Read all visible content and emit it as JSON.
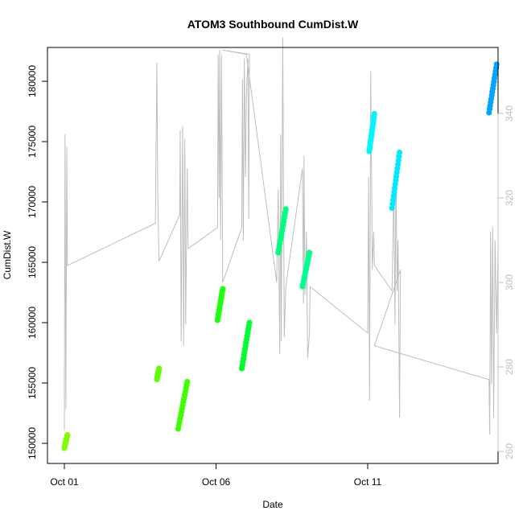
{
  "chart_data": {
    "type": "scatter",
    "title": "ATOM3 Southbound CumDist.W",
    "xlabel": "Date",
    "ylabel": "CumDist.W",
    "x_ticks": [
      "Oct 01",
      "Oct 06",
      "Oct 11"
    ],
    "x_range_days": [
      0,
      14.6
    ],
    "ylim": [
      149000,
      182500
    ],
    "y_ticks": [
      150000,
      155000,
      160000,
      165000,
      170000,
      175000,
      180000
    ],
    "y_right_ticks": [
      260,
      280,
      300,
      320,
      340
    ],
    "y_right_range": [
      258,
      355
    ],
    "gray_line_color": "#bebebe",
    "point_series": [
      {
        "color": "#7fff00",
        "points": [
          [
            0.0,
            149600
          ],
          [
            0.1,
            150700
          ]
        ]
      },
      {
        "color": "#5fff00",
        "points": [
          [
            3.05,
            155300
          ],
          [
            3.12,
            156200
          ]
        ]
      },
      {
        "color": "#3fff00",
        "points": [
          [
            3.75,
            151200
          ],
          [
            4.05,
            155100
          ]
        ]
      },
      {
        "color": "#1fff10",
        "points": [
          [
            5.05,
            160200
          ],
          [
            5.22,
            162800
          ]
        ]
      },
      {
        "color": "#00ff30",
        "points": [
          [
            5.85,
            156200
          ],
          [
            6.1,
            160000
          ]
        ]
      },
      {
        "color": "#00ff7f",
        "points": [
          [
            7.05,
            165800
          ],
          [
            7.3,
            169400
          ]
        ]
      },
      {
        "color": "#00ff90",
        "points": [
          [
            7.85,
            163000
          ],
          [
            8.08,
            165800
          ]
        ]
      },
      {
        "color": "#00f5ff",
        "points": [
          [
            10.05,
            174200
          ],
          [
            10.22,
            177300
          ]
        ]
      },
      {
        "color": "#00eaff",
        "points": [
          [
            10.8,
            169500
          ],
          [
            11.05,
            174100
          ]
        ]
      },
      {
        "color": "#00a5ff",
        "points": [
          [
            14.0,
            177400
          ],
          [
            14.25,
            181400
          ]
        ]
      }
    ],
    "gray_polyline_right_axis": [
      [
        0.0,
        265
      ],
      [
        0.02,
        335
      ],
      [
        0.05,
        270
      ],
      [
        0.08,
        332
      ],
      [
        0.1,
        304
      ],
      [
        3.0,
        314
      ],
      [
        3.05,
        352
      ],
      [
        3.08,
        321
      ],
      [
        3.12,
        305
      ],
      [
        3.8,
        316
      ],
      [
        3.82,
        336
      ],
      [
        3.85,
        286
      ],
      [
        3.9,
        337
      ],
      [
        3.93,
        285
      ],
      [
        3.97,
        334
      ],
      [
        4.0,
        290
      ],
      [
        4.05,
        327
      ],
      [
        4.08,
        308
      ],
      [
        5.05,
        313
      ],
      [
        5.07,
        354
      ],
      [
        5.1,
        320
      ],
      [
        5.12,
        355
      ],
      [
        5.15,
        310
      ],
      [
        5.18,
        354
      ],
      [
        5.22,
        300
      ],
      [
        5.85,
        313
      ],
      [
        5.87,
        348
      ],
      [
        5.9,
        310
      ],
      [
        5.93,
        353
      ],
      [
        5.97,
        325
      ],
      [
        6.0,
        344
      ],
      [
        6.05,
        353
      ],
      [
        6.08,
        315
      ],
      [
        6.1,
        354
      ],
      [
        5.22,
        355
      ],
      [
        6.0,
        354
      ],
      [
        7.0,
        300
      ],
      [
        7.05,
        322
      ],
      [
        7.1,
        283
      ],
      [
        7.13,
        335
      ],
      [
        7.15,
        286
      ],
      [
        7.2,
        358
      ],
      [
        7.25,
        287
      ],
      [
        7.3,
        299
      ],
      [
        7.85,
        327
      ],
      [
        7.88,
        295
      ],
      [
        7.9,
        330
      ],
      [
        7.93,
        297
      ],
      [
        7.98,
        312
      ],
      [
        8.02,
        282
      ],
      [
        8.08,
        288
      ],
      [
        8.1,
        299
      ],
      [
        10.0,
        288
      ],
      [
        10.03,
        325
      ],
      [
        10.06,
        272
      ],
      [
        10.1,
        350
      ],
      [
        10.15,
        303
      ],
      [
        10.2,
        312
      ],
      [
        10.22,
        304
      ],
      [
        10.8,
        298
      ],
      [
        10.83,
        308
      ],
      [
        10.86,
        324
      ],
      [
        10.9,
        290
      ],
      [
        10.93,
        326
      ],
      [
        10.97,
        298
      ],
      [
        11.0,
        310
      ],
      [
        11.05,
        268
      ],
      [
        11.08,
        303
      ],
      [
        10.22,
        285
      ],
      [
        14.0,
        277
      ],
      [
        14.02,
        264
      ],
      [
        14.05,
        312
      ],
      [
        14.08,
        276
      ],
      [
        14.12,
        313
      ],
      [
        14.15,
        268
      ],
      [
        14.2,
        310
      ],
      [
        14.25,
        288
      ],
      [
        14.3,
        309
      ]
    ]
  }
}
